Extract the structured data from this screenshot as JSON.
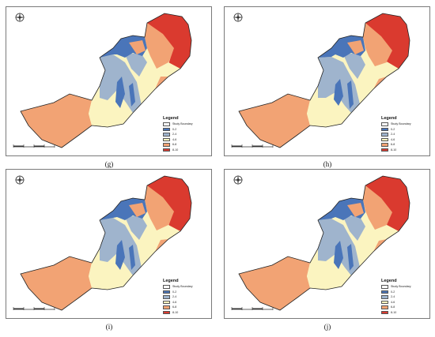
{
  "colors": {
    "boundary": "#ffffff",
    "c0_2": "#4a75b9",
    "c2_4": "#9fb4cd",
    "c4_6": "#fbf4c0",
    "c6_8": "#f2a374",
    "c8_10": "#da3a2f"
  },
  "legend": {
    "title": "Legend",
    "items": [
      {
        "label": "Study Boundary",
        "color": "#ffffff"
      },
      {
        "label": "0-2",
        "color": "#4a75b9"
      },
      {
        "label": "2-4",
        "color": "#9fb4cd"
      },
      {
        "label": "4-6",
        "color": "#fbf4c0"
      },
      {
        "label": "6-8",
        "color": "#f2a374"
      },
      {
        "label": "8-10",
        "color": "#da3a2f"
      }
    ]
  },
  "panels": [
    {
      "id": "g",
      "caption": "(g)"
    },
    {
      "id": "h",
      "caption": "(h)"
    },
    {
      "id": "i",
      "caption": "(i)"
    },
    {
      "id": "j",
      "caption": "(j)"
    }
  ],
  "icons": {
    "north_arrow": "compass-rose-icon",
    "scale_bar": "scale-bar-icon"
  }
}
